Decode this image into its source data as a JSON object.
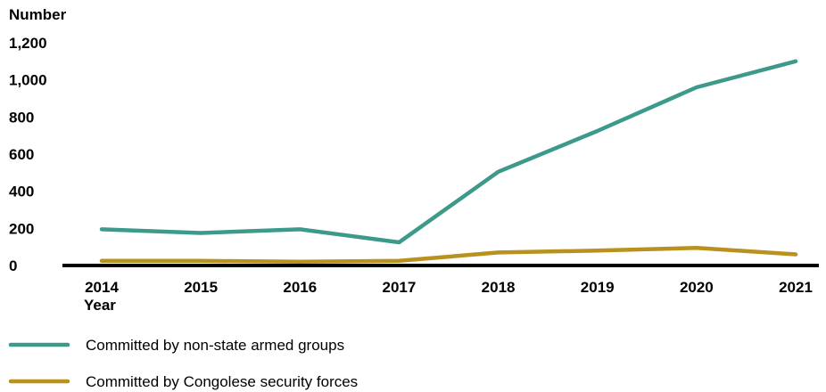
{
  "chart_data": {
    "type": "line",
    "ylabel": "Number",
    "xlabel": "Year",
    "x": [
      "2014",
      "2015",
      "2016",
      "2017",
      "2018",
      "2019",
      "2020",
      "2021"
    ],
    "ylim": [
      0,
      1200
    ],
    "yticks": [
      0,
      200,
      400,
      600,
      800,
      1000,
      1200
    ],
    "ytick_labels": [
      "0",
      "200",
      "400",
      "600",
      "800",
      "1,000",
      "1,200"
    ],
    "grid": false,
    "legend_position": "bottom",
    "series": [
      {
        "name": "Committed by non-state armed groups",
        "color": "#3d9a8b",
        "values": [
          195,
          175,
          195,
          125,
          505,
          725,
          960,
          1100
        ]
      },
      {
        "name": "Committed by Congolese security forces",
        "color": "#b8911e",
        "values": [
          25,
          25,
          20,
          25,
          70,
          80,
          95,
          60
        ]
      }
    ]
  }
}
